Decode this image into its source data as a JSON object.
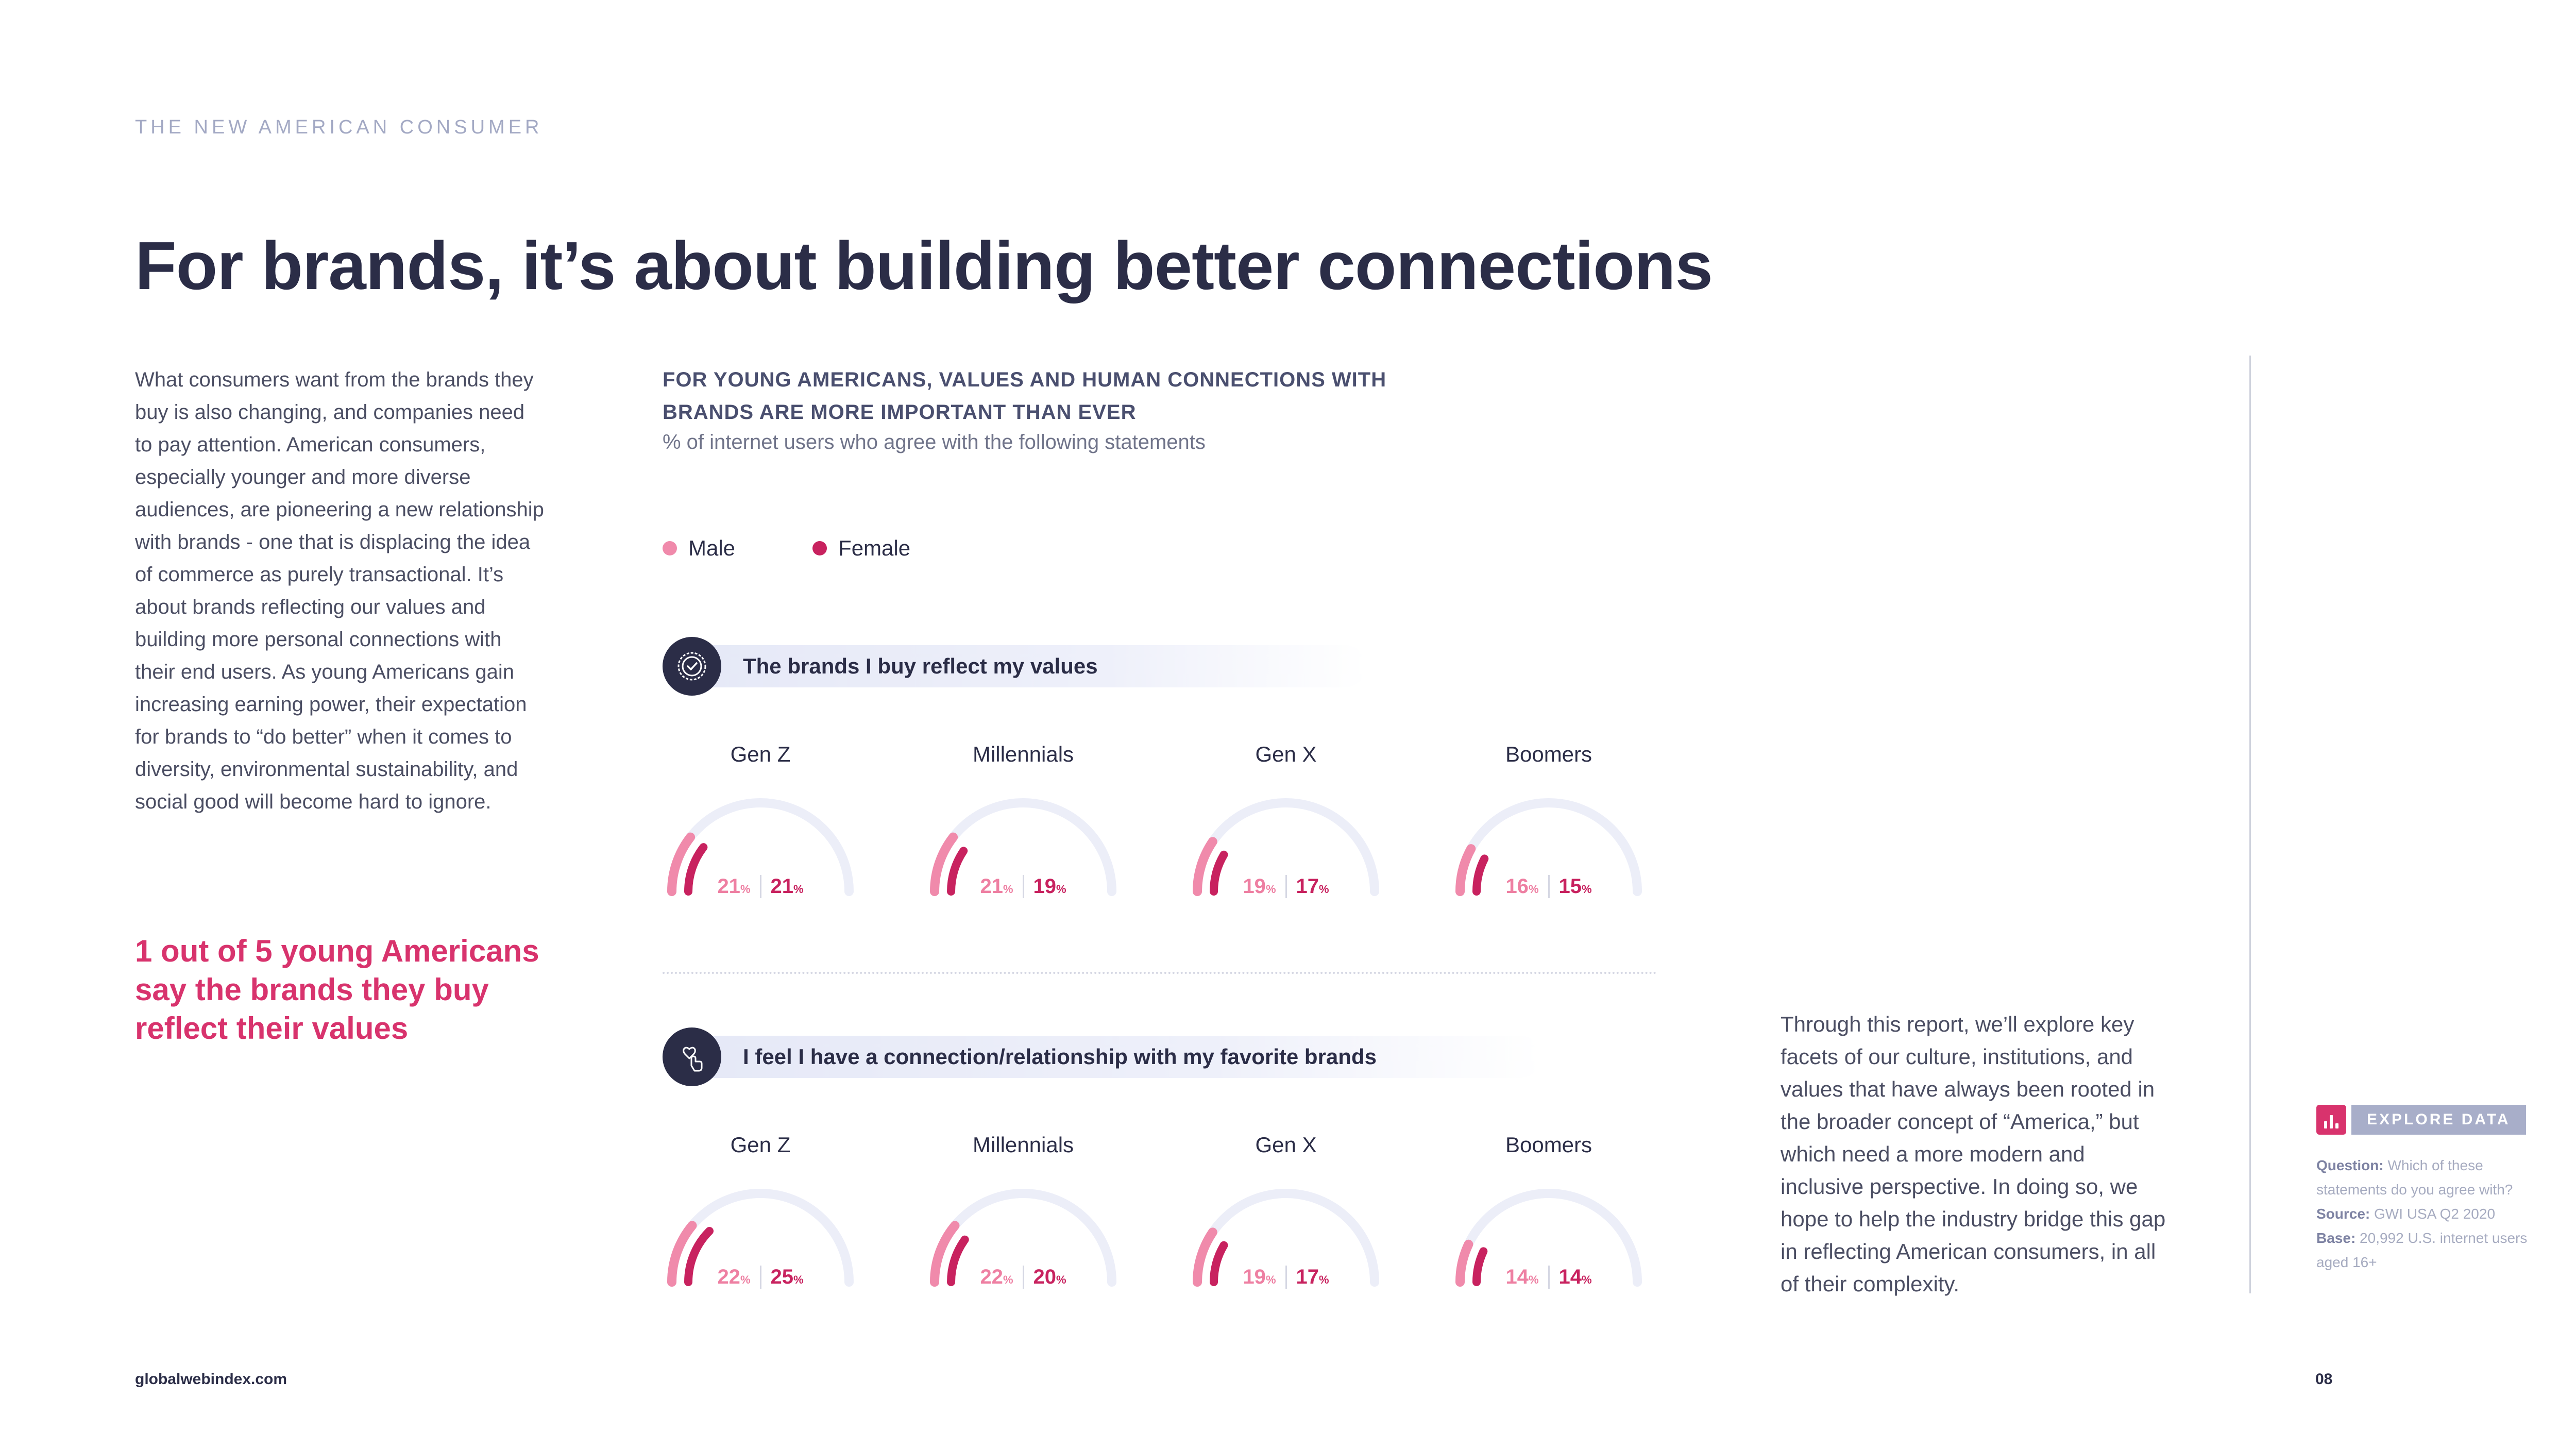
{
  "header": {
    "eyebrow": "THE NEW AMERICAN CONSUMER",
    "title": "For brands, it’s about building better connections"
  },
  "intro": {
    "paragraph": "What consumers want from the brands they buy is also changing, and companies need to pay attention. American consumers, especially younger and more diverse audiences, are pioneering a new relationship with brands - one that is displacing the idea of commerce as purely transactional. It’s about brands reflecting our values and building more personal connections with their end users. As young Americans gain increasing earning power, their expectation for brands to “do better” when it comes to diversity, environmental sustainability, and social good will become hard to ignore.",
    "highlight": "1 out of 5 young Americans say the brands they buy reflect their values"
  },
  "chart_data": {
    "type": "gauge",
    "title": "FOR YOUNG AMERICANS, VALUES AND HUMAN CONNECTIONS WITH BRANDS ARE MORE IMPORTANT THAN EVER",
    "subtitle": "% of internet users who agree with the following statements",
    "unit": "%",
    "ylim": [
      0,
      100
    ],
    "legend": [
      {
        "name": "Male",
        "color": "#f08aab"
      },
      {
        "name": "Female",
        "color": "#c8225f"
      }
    ],
    "categories": [
      "Gen Z",
      "Millennials",
      "Gen X",
      "Boomers"
    ],
    "sections": [
      {
        "statement": "The brands I buy reflect my values",
        "icon": "badge-check-icon",
        "series": [
          {
            "name": "Male",
            "values": [
              21,
              21,
              19,
              16
            ]
          },
          {
            "name": "Female",
            "values": [
              21,
              19,
              17,
              15
            ]
          }
        ]
      },
      {
        "statement": "I feel I have a connection/relationship with my favorite brands",
        "icon": "heart-hand-icon",
        "series": [
          {
            "name": "Male",
            "values": [
              22,
              22,
              19,
              14
            ]
          },
          {
            "name": "Female",
            "values": [
              25,
              20,
              17,
              14
            ]
          }
        ]
      }
    ]
  },
  "right_text": "Through this report, we’ll explore key facets of our culture, institutions, and values that have always been rooted in the broader concept of “America,” but which need a more modern and inclusive perspective. In doing so, we hope to help the industry bridge this gap in reflecting American consumers, in all of their complexity.",
  "explore": {
    "label": "EXPLORE DATA",
    "question_label": "Question:",
    "question_text": " Which of these statements do you agree with?",
    "source_label": "Source:",
    "source_text": " GWI USA Q2 2020",
    "base_label": "Base:",
    "base_text": " 20,992 U.S. internet users aged 16+"
  },
  "footer": {
    "site": "globalwebindex.com",
    "page": "08"
  },
  "colors": {
    "male": "#f08aab",
    "female": "#c8225f",
    "track": "#eceef8",
    "navy": "#2b2d47",
    "accent": "#d8336d"
  }
}
